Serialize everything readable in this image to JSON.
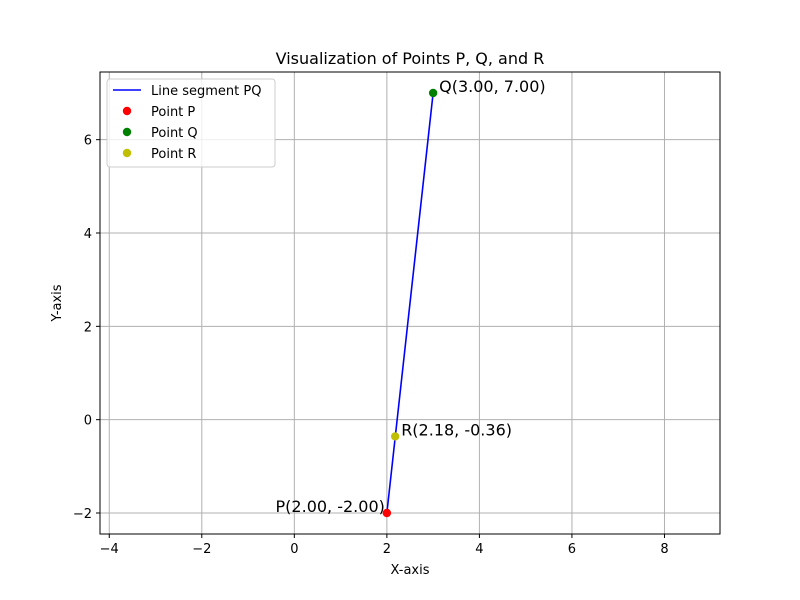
{
  "chart_data": {
    "type": "line",
    "title": "Visualization of Points P, Q, and R",
    "xlabel": "X-axis",
    "ylabel": "Y-axis",
    "xlim": [
      -4.2,
      9.2
    ],
    "ylim": [
      -2.45,
      7.45
    ],
    "xticks": [
      -4,
      -2,
      0,
      2,
      4,
      6,
      8
    ],
    "yticks": [
      -2,
      0,
      2,
      4,
      6
    ],
    "xtick_labels": [
      "−4",
      "−2",
      "0",
      "2",
      "4",
      "6",
      "8"
    ],
    "ytick_labels": [
      "−2",
      "0",
      "2",
      "4",
      "6"
    ],
    "grid": true,
    "legend_position": "top-left",
    "line": {
      "name": "Line segment PQ",
      "color": "#0000ff",
      "x": [
        2.0,
        3.0
      ],
      "y": [
        -2.0,
        7.0
      ]
    },
    "points": [
      {
        "id": "P",
        "legend": "Point P",
        "x": 2.0,
        "y": -2.0,
        "color": "#ff0000",
        "label": "P(2.00, -2.00)",
        "label_side": "left"
      },
      {
        "id": "Q",
        "legend": "Point Q",
        "x": 3.0,
        "y": 7.0,
        "color": "#008000",
        "label": "Q(3.00, 7.00)",
        "label_side": "right"
      },
      {
        "id": "R",
        "legend": "Point R",
        "x": 2.18,
        "y": -0.36,
        "color": "#bfbf00",
        "label": "R(2.18, -0.36)",
        "label_side": "right"
      }
    ]
  }
}
